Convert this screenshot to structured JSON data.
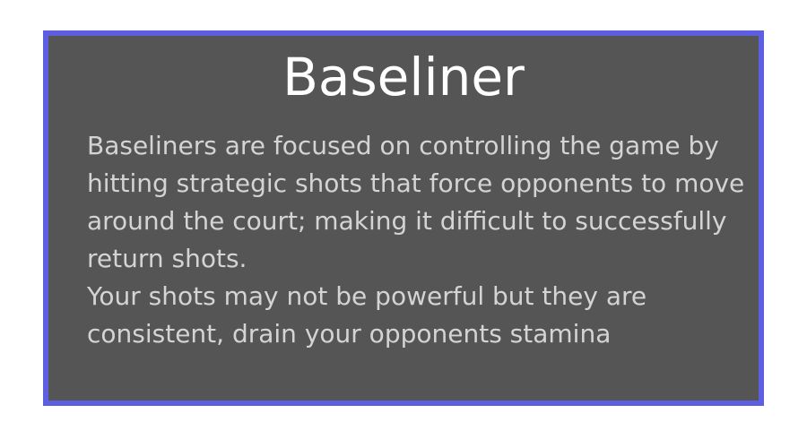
{
  "card": {
    "title": "Baseliner",
    "paragraphs": [
      "Baseliners are focused on controlling the game by hitting strategic shots that force opponents to move around the court; making it difficult to successfully return shots.",
      "Your shots may not be powerful but they are consistent, drain your opponents stamina"
    ]
  },
  "colors": {
    "card_background": "#555555",
    "card_border": "#5d5fe0",
    "title_text": "#ffffff",
    "body_text": "#d4d4d4"
  }
}
